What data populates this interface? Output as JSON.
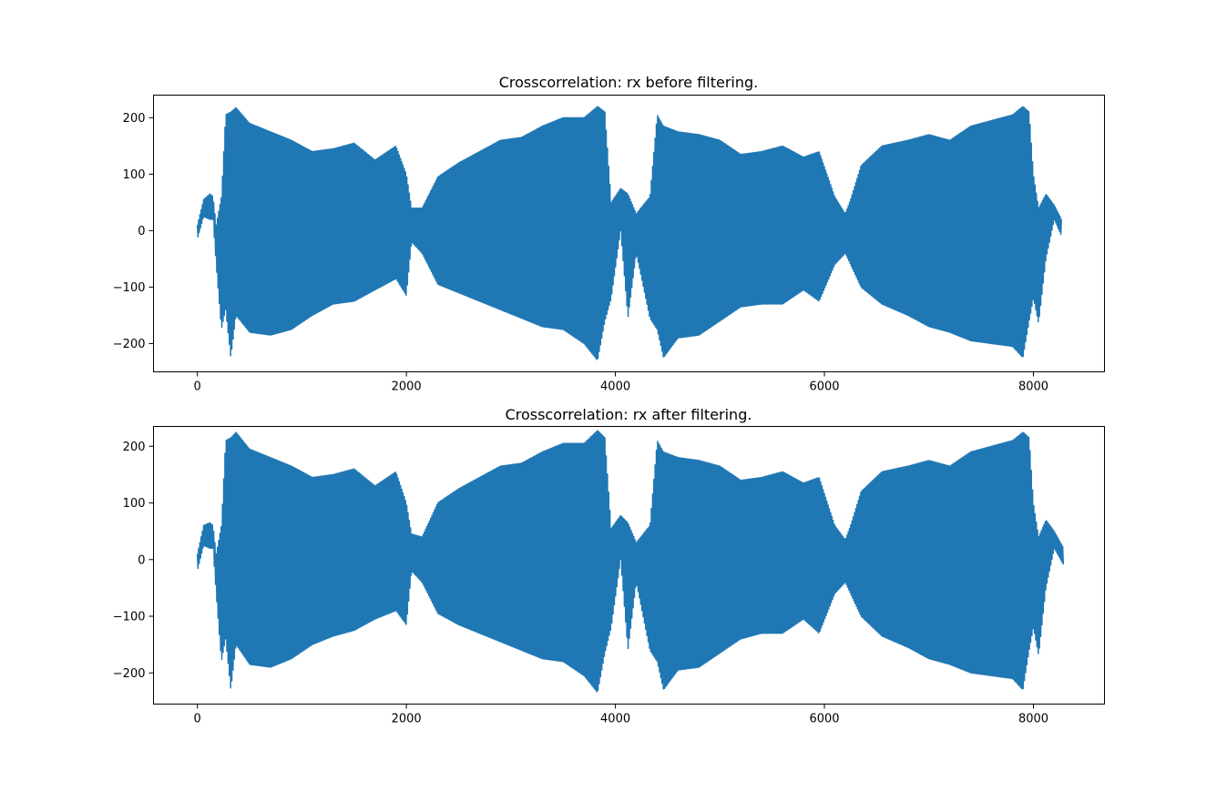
{
  "colors": {
    "series": "#1f77b4",
    "frame": "#000000",
    "background": "#ffffff"
  },
  "chart_data": [
    {
      "type": "line",
      "title": "Crosscorrelation: rx before filtering.",
      "xlabel": "",
      "ylabel": "",
      "xlim": [
        -420,
        8680
      ],
      "ylim": [
        -250,
        240
      ],
      "xticks": [
        0,
        2000,
        4000,
        6000,
        8000
      ],
      "xtick_labels": [
        "0",
        "2000",
        "4000",
        "6000",
        "8000"
      ],
      "yticks": [
        -200,
        -100,
        0,
        100,
        200
      ],
      "ytick_labels": [
        "−200",
        "−100",
        "0",
        "100",
        "200"
      ],
      "grid": false,
      "series": [
        {
          "x_range": [
            0,
            8270
          ],
          "envelope_points": [
            [
              0,
              -15,
              10
            ],
            [
              60,
              25,
              55
            ],
            [
              120,
              20,
              65
            ],
            [
              150,
              20,
              60
            ],
            [
              180,
              -60,
              10
            ],
            [
              230,
              -175,
              60
            ],
            [
              270,
              -140,
              205
            ],
            [
              320,
              -225,
              210
            ],
            [
              370,
              -150,
              218
            ],
            [
              500,
              -180,
              190
            ],
            [
              700,
              -185,
              175
            ],
            [
              900,
              -175,
              160
            ],
            [
              1100,
              -150,
              140
            ],
            [
              1300,
              -130,
              145
            ],
            [
              1500,
              -125,
              155
            ],
            [
              1700,
              -105,
              125
            ],
            [
              1900,
              -85,
              150
            ],
            [
              2000,
              -115,
              100
            ],
            [
              2050,
              -20,
              40
            ],
            [
              2150,
              -40,
              40
            ],
            [
              2300,
              -95,
              95
            ],
            [
              2500,
              -110,
              120
            ],
            [
              2700,
              -125,
              140
            ],
            [
              2900,
              -140,
              160
            ],
            [
              3100,
              -155,
              165
            ],
            [
              3300,
              -170,
              185
            ],
            [
              3500,
              -175,
              200
            ],
            [
              3700,
              -200,
              200
            ],
            [
              3830,
              -230,
              220
            ],
            [
              3900,
              -160,
              210
            ],
            [
              3960,
              -120,
              50
            ],
            [
              4050,
              0,
              75
            ],
            [
              4120,
              -155,
              65
            ],
            [
              4200,
              -40,
              30
            ],
            [
              4330,
              -155,
              60
            ],
            [
              4400,
              -175,
              205
            ],
            [
              4460,
              -225,
              185
            ],
            [
              4600,
              -190,
              175
            ],
            [
              4800,
              -185,
              170
            ],
            [
              5000,
              -160,
              160
            ],
            [
              5200,
              -135,
              135
            ],
            [
              5400,
              -130,
              140
            ],
            [
              5600,
              -130,
              150
            ],
            [
              5800,
              -105,
              130
            ],
            [
              5950,
              -125,
              140
            ],
            [
              6100,
              -60,
              60
            ],
            [
              6200,
              -40,
              30
            ],
            [
              6250,
              -60,
              55
            ],
            [
              6350,
              -100,
              115
            ],
            [
              6550,
              -130,
              150
            ],
            [
              6800,
              -150,
              160
            ],
            [
              7000,
              -170,
              170
            ],
            [
              7200,
              -180,
              160
            ],
            [
              7400,
              -195,
              185
            ],
            [
              7600,
              -200,
              195
            ],
            [
              7800,
              -205,
              205
            ],
            [
              7900,
              -225,
              220
            ],
            [
              7960,
              -160,
              210
            ],
            [
              8000,
              -120,
              100
            ],
            [
              8050,
              -165,
              40
            ],
            [
              8120,
              -50,
              65
            ],
            [
              8200,
              20,
              45
            ],
            [
              8270,
              -10,
              20
            ]
          ]
        }
      ]
    },
    {
      "type": "line",
      "title": "Crosscorrelation: rx after filtering.",
      "xlabel": "",
      "ylabel": "",
      "xlim": [
        -420,
        8680
      ],
      "ylim": [
        -255,
        235
      ],
      "xticks": [
        0,
        2000,
        4000,
        6000,
        8000
      ],
      "xtick_labels": [
        "0",
        "2000",
        "4000",
        "6000",
        "8000"
      ],
      "yticks": [
        -200,
        -100,
        0,
        100,
        200
      ],
      "ytick_labels": [
        "−200",
        "−100",
        "0",
        "100",
        "200"
      ],
      "grid": false,
      "series": [
        {
          "x_range": [
            0,
            8290
          ],
          "envelope_points": [
            [
              0,
              -20,
              10
            ],
            [
              60,
              25,
              60
            ],
            [
              120,
              20,
              65
            ],
            [
              150,
              20,
              60
            ],
            [
              180,
              -60,
              10
            ],
            [
              230,
              -180,
              60
            ],
            [
              270,
              -140,
              210
            ],
            [
              320,
              -230,
              215
            ],
            [
              370,
              -150,
              225
            ],
            [
              500,
              -185,
              195
            ],
            [
              700,
              -190,
              180
            ],
            [
              900,
              -175,
              165
            ],
            [
              1100,
              -150,
              145
            ],
            [
              1300,
              -135,
              150
            ],
            [
              1500,
              -125,
              160
            ],
            [
              1700,
              -105,
              130
            ],
            [
              1900,
              -90,
              155
            ],
            [
              2000,
              -115,
              100
            ],
            [
              2050,
              -20,
              45
            ],
            [
              2150,
              -40,
              40
            ],
            [
              2300,
              -95,
              100
            ],
            [
              2500,
              -115,
              125
            ],
            [
              2700,
              -130,
              145
            ],
            [
              2900,
              -145,
              165
            ],
            [
              3100,
              -160,
              170
            ],
            [
              3300,
              -175,
              190
            ],
            [
              3500,
              -180,
              205
            ],
            [
              3700,
              -205,
              205
            ],
            [
              3830,
              -235,
              228
            ],
            [
              3900,
              -165,
              215
            ],
            [
              3960,
              -120,
              55
            ],
            [
              4050,
              0,
              78
            ],
            [
              4120,
              -160,
              65
            ],
            [
              4200,
              -40,
              30
            ],
            [
              4330,
              -160,
              60
            ],
            [
              4400,
              -180,
              210
            ],
            [
              4460,
              -230,
              190
            ],
            [
              4600,
              -195,
              180
            ],
            [
              4800,
              -190,
              175
            ],
            [
              5000,
              -165,
              165
            ],
            [
              5200,
              -140,
              140
            ],
            [
              5400,
              -130,
              145
            ],
            [
              5600,
              -130,
              155
            ],
            [
              5800,
              -105,
              135
            ],
            [
              5950,
              -130,
              145
            ],
            [
              6100,
              -60,
              60
            ],
            [
              6200,
              -40,
              35
            ],
            [
              6250,
              -60,
              60
            ],
            [
              6350,
              -100,
              120
            ],
            [
              6550,
              -135,
              155
            ],
            [
              6800,
              -155,
              165
            ],
            [
              7000,
              -175,
              175
            ],
            [
              7200,
              -185,
              165
            ],
            [
              7400,
              -200,
              190
            ],
            [
              7600,
              -205,
              200
            ],
            [
              7800,
              -210,
              210
            ],
            [
              7900,
              -230,
              225
            ],
            [
              7960,
              -160,
              215
            ],
            [
              8000,
              -120,
              100
            ],
            [
              8050,
              -170,
              40
            ],
            [
              8120,
              -50,
              70
            ],
            [
              8200,
              20,
              50
            ],
            [
              8290,
              -10,
              20
            ]
          ]
        }
      ]
    }
  ]
}
